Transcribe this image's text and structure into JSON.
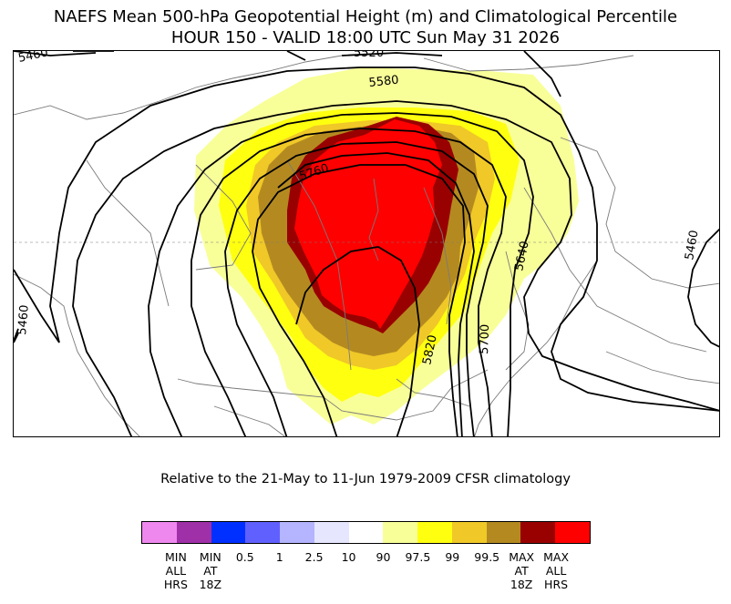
{
  "header": {
    "line1": "NAEFS Mean 500-hPa Geopotential Height (m) and Climatological Percentile",
    "line2": "HOUR 150 - VALID 18:00 UTC Sun May 31 2026"
  },
  "subtitle": "Relative to the 21-May to 11-Jun 1979-2009 CFSR climatology",
  "colorbar": {
    "colors": [
      "#ee88ee",
      "#a030a8",
      "#0030ff",
      "#6060ff",
      "#b4b4ff",
      "#e6e6ff",
      "#ffffff",
      "#f8ff98",
      "#ffff10",
      "#f0c828",
      "#b48a20",
      "#990000",
      "#ff0000"
    ],
    "labels": [
      {
        "text": "MIN\nALL\nHRS"
      },
      {
        "text": "MIN\nAT\n18Z"
      },
      {
        "text": "0.5"
      },
      {
        "text": "1"
      },
      {
        "text": "2.5"
      },
      {
        "text": "10"
      },
      {
        "text": "90"
      },
      {
        "text": "97.5"
      },
      {
        "text": "99"
      },
      {
        "text": "99.5"
      },
      {
        "text": "MAX\nAT\n18Z"
      },
      {
        "text": "MAX\nALL\nHRS"
      }
    ]
  },
  "contour_labels": [
    "5460",
    "5520",
    "5580",
    "5760",
    "5640",
    "5460",
    "5700",
    "5820",
    "5460"
  ]
}
